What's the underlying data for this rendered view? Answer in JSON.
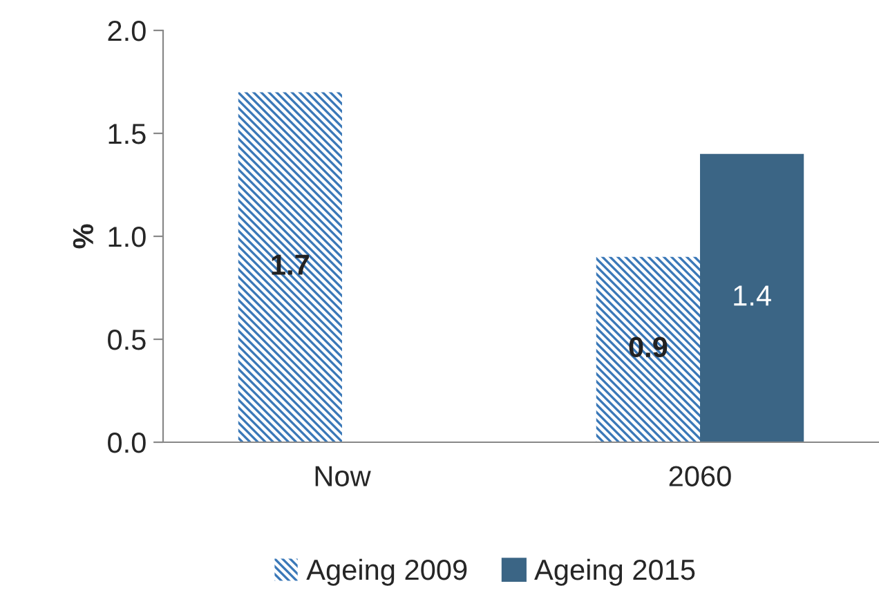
{
  "chart_data": {
    "type": "bar",
    "categories": [
      "Now",
      "2060"
    ],
    "ylabel": "%",
    "series": [
      {
        "name": "Ageing 2009",
        "color": "#3a78b8",
        "values": [
          1.7,
          0.9
        ]
      },
      {
        "name": "Ageing 2015",
        "color": "#3b6585",
        "values": [
          null,
          1.4
        ]
      }
    ],
    "ylim": [
      0,
      2.0
    ],
    "yticks": [
      {
        "value": 0,
        "label": "0.0"
      },
      {
        "value": 0.5,
        "label": "0.5"
      },
      {
        "value": 1.0,
        "label": "1.0"
      },
      {
        "value": 1.5,
        "label": "1.5"
      },
      {
        "value": 2.0,
        "label": "2.0"
      }
    ],
    "data_labels": true,
    "legend": "bottom",
    "grid": false
  }
}
